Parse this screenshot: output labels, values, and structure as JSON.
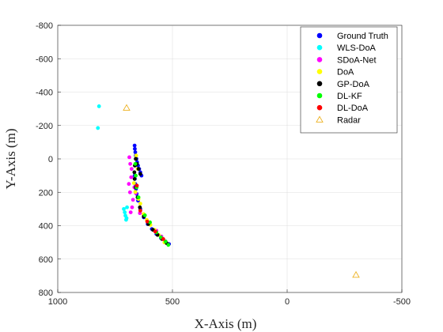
{
  "chart_data": {
    "type": "scatter",
    "title": "",
    "xlabel": "X-Axis (m)",
    "ylabel": "Y-Axis (m)",
    "xlim": [
      1000,
      -500
    ],
    "ylim": [
      -800,
      800
    ],
    "x_reversed": true,
    "y_reversed": true,
    "xticks": [
      1000,
      500,
      0,
      -500
    ],
    "xtick_labels": [
      "1000",
      "500",
      "0",
      "-500"
    ],
    "yticks": [
      -800,
      -600,
      -400,
      -200,
      0,
      200,
      400,
      600,
      800
    ],
    "ytick_labels": [
      "-800",
      "-600",
      "-400",
      "-200",
      "0",
      "200",
      "400",
      "600",
      "800"
    ],
    "grid": true,
    "legend_position": "top-right",
    "series": [
      {
        "name": "Ground Truth",
        "color": "#0000ff",
        "marker": "dot",
        "x": [
          635,
          640,
          645,
          650,
          654,
          657,
          660,
          662,
          664,
          665,
          665,
          664,
          662,
          659,
          656,
          650,
          640,
          625,
          608,
          590,
          570,
          550,
          530,
          515
        ],
        "y": [
          100,
          80,
          60,
          40,
          20,
          0,
          -20,
          -40,
          -60,
          -80,
          100,
          120,
          150,
          180,
          210,
          250,
          300,
          350,
          390,
          420,
          450,
          475,
          495,
          510
        ]
      },
      {
        "name": "WLS-DoA",
        "color": "#00ffff",
        "marker": "dot",
        "x": [
          820,
          825,
          712,
          708,
          705,
          700,
          702,
          698
        ],
        "y": [
          -315,
          -185,
          300,
          320,
          340,
          355,
          365,
          290
        ]
      },
      {
        "name": "SDoA-Net",
        "color": "#ff00ff",
        "marker": "dot",
        "x": [
          688,
          684,
          678,
          680,
          690,
          685,
          672,
          676,
          682,
          666,
          660,
          642,
          602,
          570,
          548,
          530
        ],
        "y": [
          -10,
          30,
          60,
          110,
          150,
          200,
          245,
          290,
          320,
          170,
          205,
          325,
          385,
          430,
          465,
          495
        ]
      },
      {
        "name": "DoA",
        "color": "#ffff00",
        "marker": "dot",
        "x": [
          658,
          652,
          668,
          662,
          648,
          640,
          626,
          612,
          596,
          578,
          560,
          545,
          535
        ],
        "y": [
          -20,
          60,
          145,
          198,
          240,
          268,
          330,
          365,
          395,
          425,
          455,
          478,
          500
        ]
      },
      {
        "name": "GP-DoA",
        "color": "#000000",
        "marker": "dot",
        "x": [
          640,
          648,
          655,
          660,
          664,
          666,
          665,
          660,
          652,
          642,
          625,
          605,
          585,
          565,
          545,
          525
        ],
        "y": [
          90,
          60,
          30,
          0,
          40,
          80,
          120,
          170,
          230,
          290,
          345,
          390,
          425,
          455,
          480,
          505
        ]
      },
      {
        "name": "DL-KF",
        "color": "#00ff00",
        "marker": "dot",
        "x": [
          662,
          660,
          656,
          648,
          620,
          598,
          570,
          550,
          530,
          518
        ],
        "y": [
          30,
          100,
          170,
          230,
          338,
          380,
          440,
          470,
          495,
          515
        ]
      },
      {
        "name": "DL-DoA",
        "color": "#ff0000",
        "marker": "dot",
        "x": [
          655,
          640,
          610,
          575,
          540
        ],
        "y": [
          160,
          310,
          375,
          435,
          480
        ]
      },
      {
        "name": "Radar",
        "color": "#edb120",
        "marker": "triangle",
        "x": [
          700,
          -300
        ],
        "y": [
          -305,
          695
        ]
      }
    ]
  }
}
